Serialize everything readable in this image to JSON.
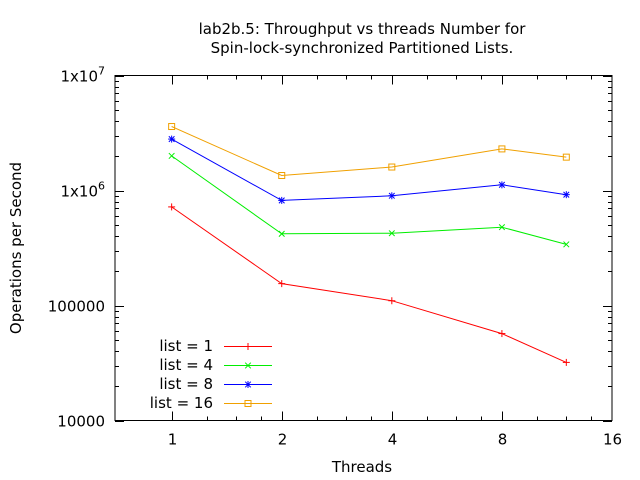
{
  "chart_data": {
    "type": "line",
    "title": [
      "lab2b.5: Throughput vs threads Number for",
      "Spin-lock-synchronized Partitioned Lists."
    ],
    "xlabel": "Threads",
    "ylabel": "Operations per Second",
    "x_scale": "log2",
    "y_scale": "log10",
    "xlim": [
      0.7,
      16
    ],
    "ylim": [
      10000,
      10000000
    ],
    "x_ticks": [
      {
        "value": 1,
        "label": "1"
      },
      {
        "value": 2,
        "label": "2"
      },
      {
        "value": 4,
        "label": "4"
      },
      {
        "value": 8,
        "label": "8"
      },
      {
        "value": 16,
        "label": "16"
      }
    ],
    "y_ticks": [
      {
        "value": 10000,
        "label": "10000"
      },
      {
        "value": 100000,
        "label": "100000"
      },
      {
        "value": 1000000,
        "label": "1x10",
        "exp": "6"
      },
      {
        "value": 10000000,
        "label": "1x10",
        "exp": "7"
      }
    ],
    "grid": false,
    "legend": "bottom-left",
    "x": [
      1,
      2,
      4,
      8,
      12
    ],
    "series": [
      {
        "name": "list = 1",
        "color": "#ff0000",
        "marker": "plus",
        "values": [
          720000,
          155000,
          110000,
          57000,
          32000
        ]
      },
      {
        "name": "list = 4",
        "color": "#00ee00",
        "marker": "cross",
        "values": [
          2000000,
          420000,
          425000,
          480000,
          340000
        ]
      },
      {
        "name": "list = 8",
        "color": "#0000ff",
        "marker": "star",
        "values": [
          2800000,
          820000,
          900000,
          1120000,
          920000
        ]
      },
      {
        "name": "list = 16",
        "color": "#f0a000",
        "marker": "square",
        "values": [
          3600000,
          1350000,
          1600000,
          2300000,
          1950000
        ]
      }
    ]
  }
}
